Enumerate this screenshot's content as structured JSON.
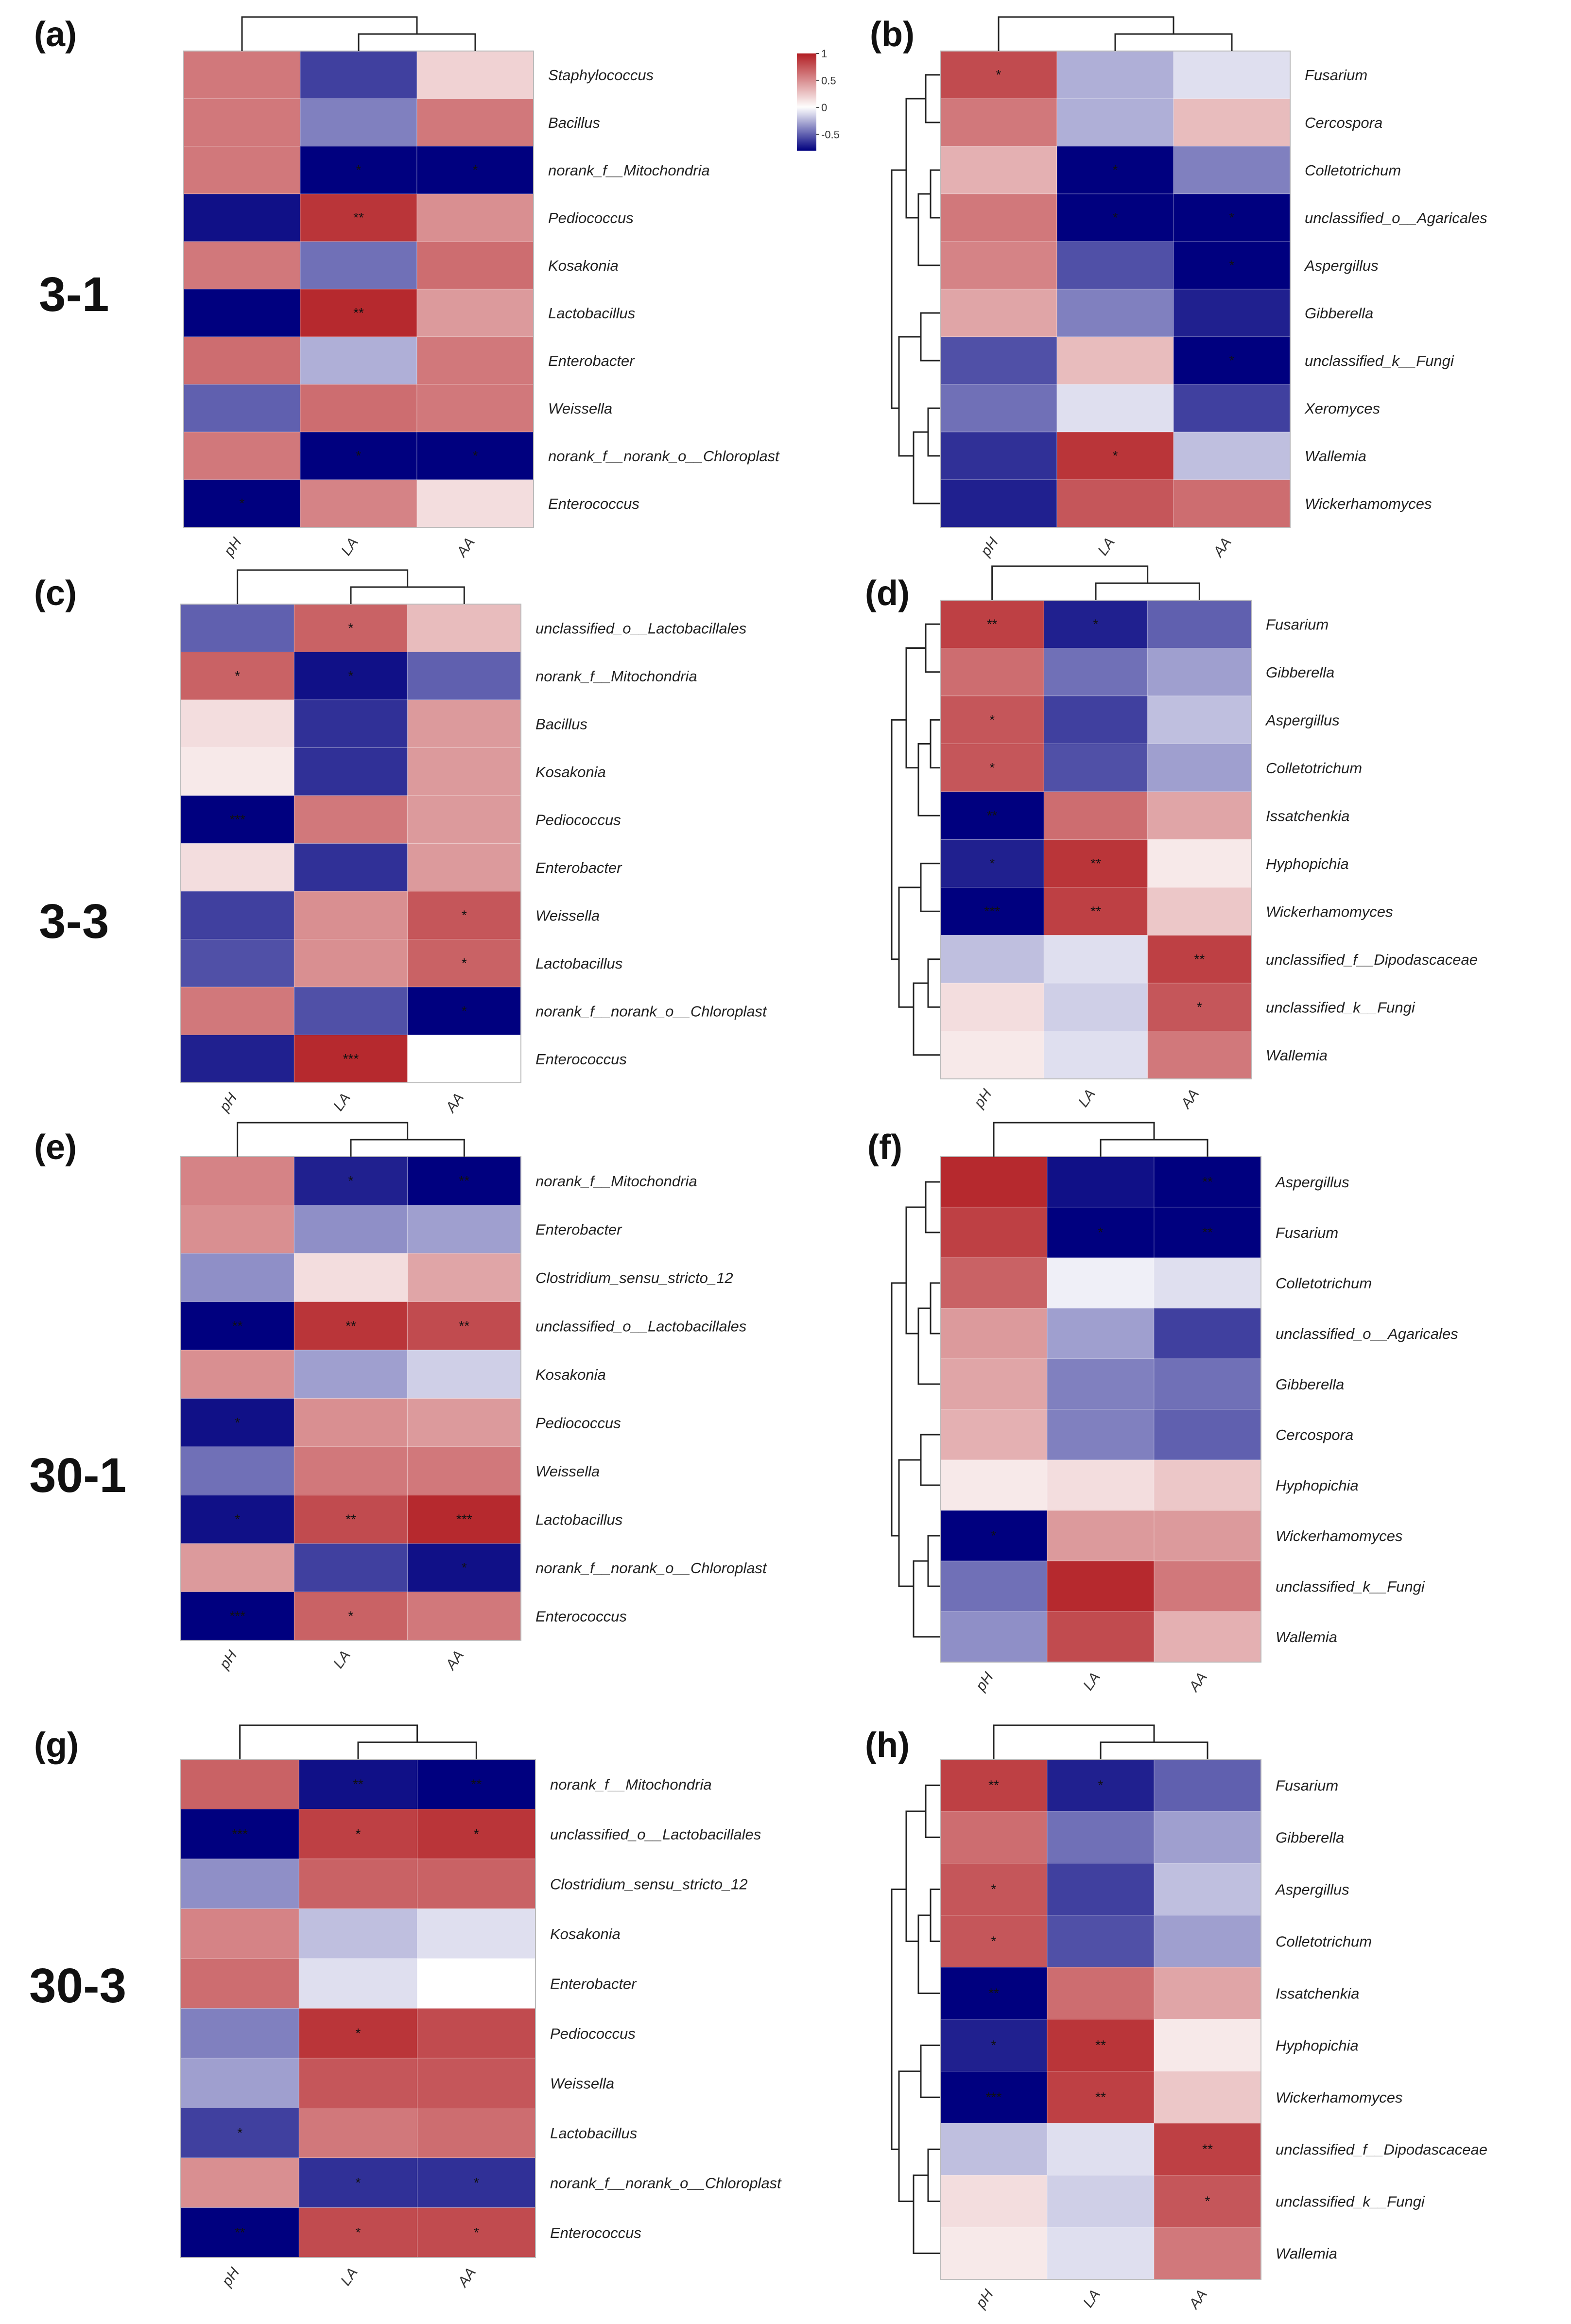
{
  "figure": {
    "row_labels": [
      "3-1",
      "3-3",
      "30-1",
      "30-3"
    ],
    "colorbar": {
      "ticks": [
        "1",
        "0.5",
        "0",
        "-0.5"
      ],
      "values": [
        1,
        0.5,
        0,
        -0.5
      ],
      "min": -0.8,
      "max": 1.0,
      "colors": {
        "high": "#b21e23",
        "mid": "#ffffff",
        "low": "#00007f"
      }
    }
  },
  "chart_data": [
    {
      "type": "heatmap",
      "panel": "(a)",
      "x": [
        "pH",
        "LA",
        "AA"
      ],
      "rows": [
        "Staphylococcus",
        "Bacillus",
        "norank_f__Mitochondria",
        "Pediococcus",
        "Kosakonia",
        "Lactobacillus",
        "Enterobacter",
        "Weissella",
        "norank_f__norank_o__Chloroplast",
        "Enterococcus"
      ],
      "values": [
        [
          0.6,
          -0.6,
          0.2
        ],
        [
          0.6,
          -0.4,
          0.6
        ],
        [
          0.6,
          -0.8,
          -0.8
        ],
        [
          -0.75,
          0.9,
          0.5
        ],
        [
          0.6,
          -0.45,
          0.65
        ],
        [
          -0.8,
          0.95,
          0.45
        ],
        [
          0.65,
          -0.25,
          0.6
        ],
        [
          -0.5,
          0.65,
          0.6
        ],
        [
          0.6,
          -0.8,
          -0.8
        ],
        [
          -0.8,
          0.55,
          0.15
        ]
      ],
      "stars": [
        [
          "",
          "",
          ""
        ],
        [
          "",
          "",
          ""
        ],
        [
          "",
          "*",
          "*"
        ],
        [
          "",
          "**",
          ""
        ],
        [
          "",
          "",
          ""
        ],
        [
          "",
          "**",
          ""
        ],
        [
          "",
          "",
          ""
        ],
        [
          "",
          "",
          ""
        ],
        [
          "",
          "*",
          "*"
        ],
        [
          "*",
          "",
          ""
        ]
      ]
    },
    {
      "type": "heatmap",
      "panel": "(b)",
      "x": [
        "pH",
        "LA",
        "AA"
      ],
      "rows": [
        "Fusarium",
        "Cercospora",
        "Colletotrichum",
        "unclassified_o__Agaricales",
        "Aspergillus",
        "Gibberella",
        "unclassified_k__Fungi",
        "Xeromyces",
        "Wallemia",
        "Wickerhamomyces"
      ],
      "values": [
        [
          0.8,
          -0.25,
          -0.1
        ],
        [
          0.6,
          -0.25,
          0.3
        ],
        [
          0.35,
          -0.8,
          -0.4
        ],
        [
          0.6,
          -0.8,
          -0.8
        ],
        [
          0.55,
          -0.55,
          -0.8
        ],
        [
          0.4,
          -0.4,
          -0.7
        ],
        [
          -0.55,
          0.3,
          -0.8
        ],
        [
          -0.45,
          -0.1,
          -0.6
        ],
        [
          -0.65,
          0.9,
          -0.2
        ],
        [
          -0.7,
          0.75,
          0.65
        ]
      ],
      "stars": [
        [
          "*",
          "",
          ""
        ],
        [
          "",
          "",
          ""
        ],
        [
          "",
          "*",
          ""
        ],
        [
          "",
          "*",
          "*"
        ],
        [
          "",
          "",
          "*"
        ],
        [
          "",
          "",
          ""
        ],
        [
          "",
          "",
          "*"
        ],
        [
          "",
          "",
          ""
        ],
        [
          "",
          "*",
          ""
        ],
        [
          "",
          "",
          ""
        ]
      ]
    },
    {
      "type": "heatmap",
      "panel": "(c)",
      "x": [
        "pH",
        "LA",
        "AA"
      ],
      "rows": [
        "unclassified_o__Lactobacillales",
        "norank_f__Mitochondria",
        "Bacillus",
        "Kosakonia",
        "Pediococcus",
        "Enterobacter",
        "Weissella",
        "Lactobacillus",
        "norank_f__norank_o__Chloroplast",
        "Enterococcus"
      ],
      "values": [
        [
          -0.5,
          0.7,
          0.3
        ],
        [
          0.7,
          -0.75,
          -0.5
        ],
        [
          0.15,
          -0.65,
          0.45
        ],
        [
          0.1,
          -0.65,
          0.45
        ],
        [
          -0.85,
          0.6,
          0.45
        ],
        [
          0.15,
          -0.65,
          0.45
        ],
        [
          -0.6,
          0.5,
          0.75
        ],
        [
          -0.55,
          0.5,
          0.7
        ],
        [
          0.6,
          -0.55,
          -0.8
        ],
        [
          -0.7,
          0.95,
          0.0
        ]
      ],
      "stars": [
        [
          "",
          "*",
          ""
        ],
        [
          "*",
          "*",
          ""
        ],
        [
          "",
          "",
          ""
        ],
        [
          "",
          "",
          ""
        ],
        [
          "***",
          "",
          ""
        ],
        [
          "",
          "",
          ""
        ],
        [
          "",
          "",
          "*"
        ],
        [
          "",
          "",
          "*"
        ],
        [
          "",
          "",
          "*"
        ],
        [
          "",
          "***",
          ""
        ]
      ]
    },
    {
      "type": "heatmap",
      "panel": "(d)",
      "x": [
        "pH",
        "LA",
        "AA"
      ],
      "rows": [
        "Fusarium",
        "Gibberella",
        "Aspergillus",
        "Colletotrichum",
        "Issatchenkia",
        "Hyphopichia",
        "Wickerhamomyces",
        "unclassified_f__Dipodascaceae",
        "unclassified_k__Fungi",
        "Wallemia"
      ],
      "values": [
        [
          0.85,
          -0.7,
          -0.5
        ],
        [
          0.65,
          -0.45,
          -0.3
        ],
        [
          0.75,
          -0.6,
          -0.2
        ],
        [
          0.75,
          -0.55,
          -0.3
        ],
        [
          -0.8,
          0.65,
          0.4
        ],
        [
          -0.7,
          0.9,
          0.1
        ],
        [
          -0.85,
          0.85,
          0.25
        ],
        [
          -0.2,
          -0.1,
          0.85
        ],
        [
          0.15,
          -0.15,
          0.75
        ],
        [
          0.1,
          -0.1,
          0.6
        ]
      ],
      "stars": [
        [
          "**",
          "*",
          ""
        ],
        [
          "",
          "",
          ""
        ],
        [
          "*",
          "",
          ""
        ],
        [
          "*",
          "",
          ""
        ],
        [
          "**",
          "",
          ""
        ],
        [
          "*",
          "**",
          ""
        ],
        [
          "***",
          "**",
          ""
        ],
        [
          "",
          "",
          "**"
        ],
        [
          "",
          "",
          "*"
        ],
        [
          "",
          "",
          ""
        ]
      ]
    },
    {
      "type": "heatmap",
      "panel": "(e)",
      "x": [
        "pH",
        "LA",
        "AA"
      ],
      "rows": [
        "norank_f__Mitochondria",
        "Enterobacter",
        "Clostridium_sensu_stricto_12",
        "unclassified_o__Lactobacillales",
        "Kosakonia",
        "Pediococcus",
        "Weissella",
        "Lactobacillus",
        "norank_f__norank_o__Chloroplast",
        "Enterococcus"
      ],
      "values": [
        [
          0.55,
          -0.7,
          -0.85
        ],
        [
          0.5,
          -0.35,
          -0.3
        ],
        [
          -0.35,
          0.15,
          0.4
        ],
        [
          -0.85,
          0.9,
          0.8
        ],
        [
          0.5,
          -0.3,
          -0.15
        ],
        [
          -0.75,
          0.5,
          0.45
        ],
        [
          -0.45,
          0.6,
          0.6
        ],
        [
          -0.75,
          0.8,
          0.95
        ],
        [
          0.45,
          -0.6,
          -0.75
        ],
        [
          -0.85,
          0.7,
          0.6
        ]
      ],
      "stars": [
        [
          "",
          "*",
          "**"
        ],
        [
          "",
          "",
          ""
        ],
        [
          "",
          "",
          ""
        ],
        [
          "**",
          "**",
          "**"
        ],
        [
          "",
          "",
          ""
        ],
        [
          "*",
          "",
          ""
        ],
        [
          "",
          "",
          ""
        ],
        [
          "*",
          "**",
          "***"
        ],
        [
          "",
          "",
          "*"
        ],
        [
          "***",
          "*",
          ""
        ]
      ]
    },
    {
      "type": "heatmap",
      "panel": "(f)",
      "x": [
        "pH",
        "LA",
        "AA"
      ],
      "rows": [
        "Aspergillus",
        "Fusarium",
        "Colletotrichum",
        "unclassified_o__Agaricales",
        "Gibberella",
        "Cercospora",
        "Hyphopichia",
        "Wickerhamomyces",
        "unclassified_k__Fungi",
        "Wallemia"
      ],
      "values": [
        [
          0.95,
          -0.75,
          -0.85
        ],
        [
          0.85,
          -0.85,
          -0.85
        ],
        [
          0.7,
          -0.05,
          -0.1
        ],
        [
          0.45,
          -0.3,
          -0.6
        ],
        [
          0.4,
          -0.4,
          -0.45
        ],
        [
          0.35,
          -0.4,
          -0.5
        ],
        [
          0.1,
          0.15,
          0.25
        ],
        [
          -0.85,
          0.45,
          0.45
        ],
        [
          -0.45,
          0.95,
          0.6
        ],
        [
          -0.35,
          0.8,
          0.35
        ]
      ],
      "stars": [
        [
          "",
          "",
          "**"
        ],
        [
          "",
          "*",
          "**"
        ],
        [
          "",
          "",
          ""
        ],
        [
          "",
          "",
          ""
        ],
        [
          "",
          "",
          ""
        ],
        [
          "",
          "",
          ""
        ],
        [
          "",
          "",
          ""
        ],
        [
          "*",
          "",
          ""
        ],
        [
          "",
          "",
          ""
        ],
        [
          "",
          "",
          ""
        ]
      ]
    },
    {
      "type": "heatmap",
      "panel": "(g)",
      "x": [
        "pH",
        "LA",
        "AA"
      ],
      "rows": [
        "norank_f__Mitochondria",
        "unclassified_o__Lactobacillales",
        "Clostridium_sensu_stricto_12",
        "Kosakonia",
        "Enterobacter",
        "Pediococcus",
        "Weissella",
        "Lactobacillus",
        "norank_f__norank_o__Chloroplast",
        "Enterococcus"
      ],
      "values": [
        [
          0.7,
          -0.75,
          -0.8
        ],
        [
          -0.9,
          0.85,
          0.9
        ],
        [
          -0.35,
          0.7,
          0.7
        ],
        [
          0.55,
          -0.2,
          -0.1
        ],
        [
          0.65,
          -0.1,
          0.0
        ],
        [
          -0.4,
          0.9,
          0.8
        ],
        [
          -0.3,
          0.75,
          0.75
        ],
        [
          -0.6,
          0.6,
          0.65
        ],
        [
          0.5,
          -0.65,
          -0.65
        ],
        [
          -0.85,
          0.8,
          0.8
        ]
      ],
      "stars": [
        [
          "",
          "**",
          "**"
        ],
        [
          "***",
          "*",
          "*"
        ],
        [
          "",
          "",
          ""
        ],
        [
          "",
          "",
          ""
        ],
        [
          "",
          "",
          ""
        ],
        [
          "",
          "*",
          ""
        ],
        [
          "",
          "",
          ""
        ],
        [
          "*",
          "",
          ""
        ],
        [
          "",
          "*",
          "*"
        ],
        [
          "**",
          "*",
          "*"
        ]
      ]
    },
    {
      "type": "heatmap",
      "panel": "(h)",
      "x": [
        "pH",
        "LA",
        "AA"
      ],
      "rows": [
        "Fusarium",
        "Gibberella",
        "Aspergillus",
        "Colletotrichum",
        "Issatchenkia",
        "Hyphopichia",
        "Wickerhamomyces",
        "unclassified_f__Dipodascaceae",
        "unclassified_k__Fungi",
        "Wallemia"
      ],
      "values": [
        [
          0.85,
          -0.7,
          -0.5
        ],
        [
          0.65,
          -0.45,
          -0.3
        ],
        [
          0.75,
          -0.6,
          -0.2
        ],
        [
          0.75,
          -0.55,
          -0.3
        ],
        [
          -0.8,
          0.65,
          0.4
        ],
        [
          -0.7,
          0.9,
          0.1
        ],
        [
          -0.85,
          0.85,
          0.25
        ],
        [
          -0.2,
          -0.1,
          0.85
        ],
        [
          0.15,
          -0.15,
          0.75
        ],
        [
          0.1,
          -0.1,
          0.6
        ]
      ],
      "stars": [
        [
          "**",
          "*",
          ""
        ],
        [
          "",
          "",
          ""
        ],
        [
          "*",
          "",
          ""
        ],
        [
          "*",
          "",
          ""
        ],
        [
          "**",
          "",
          ""
        ],
        [
          "*",
          "**",
          ""
        ],
        [
          "***",
          "**",
          ""
        ],
        [
          "",
          "",
          "**"
        ],
        [
          "",
          "",
          "*"
        ],
        [
          "",
          "",
          ""
        ]
      ]
    }
  ]
}
